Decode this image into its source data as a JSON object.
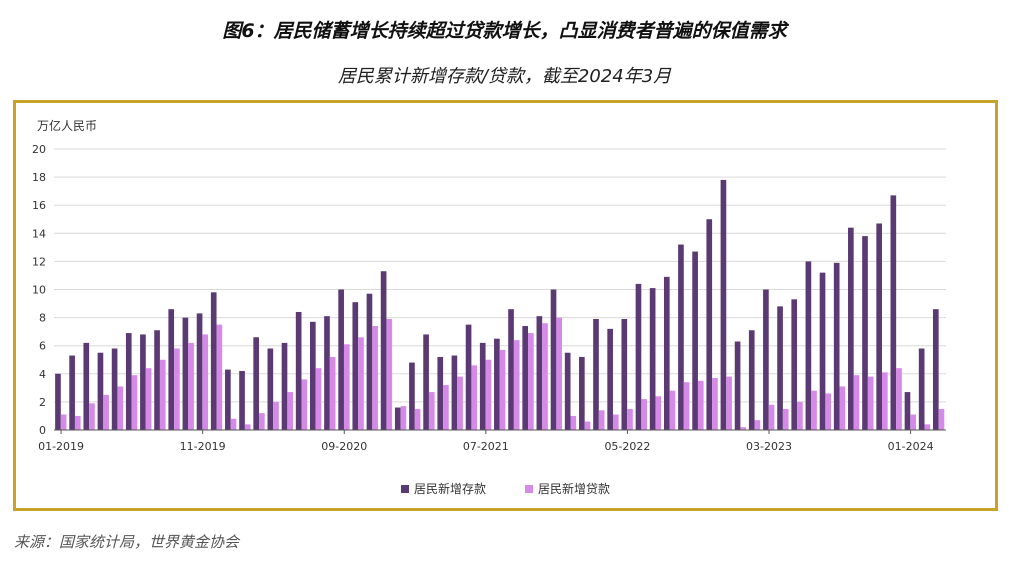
{
  "title": "图6：居民储蓄增长持续超过贷款增长，凸显消费者普遍的保值需求",
  "subtitle": "居民累计新增存款/贷款，截至2024年3月",
  "source": "来源：国家统计局，世界黄金协会",
  "colors": {
    "deposits": "#5B3A73",
    "loans": "#D58AE8",
    "frame": "#C9A227",
    "grid": "#D9D9D9"
  },
  "chart_data": {
    "type": "bar",
    "ylabel": "万亿人民币",
    "ylim": [
      0,
      20
    ],
    "yticks": [
      "0",
      "2",
      "4",
      "6",
      "8",
      "10",
      "12",
      "14",
      "16",
      "18",
      "20"
    ],
    "xtick_labels": [
      {
        "label": "01-2019",
        "index": 0
      },
      {
        "label": "11-2019",
        "index": 10
      },
      {
        "label": "09-2020",
        "index": 20
      },
      {
        "label": "07-2021",
        "index": 30
      },
      {
        "label": "05-2022",
        "index": 40
      },
      {
        "label": "03-2023",
        "index": 50
      },
      {
        "label": "01-2024",
        "index": 60
      }
    ],
    "categories": [
      "01-2019",
      "02-2019",
      "03-2019",
      "04-2019",
      "05-2019",
      "06-2019",
      "07-2019",
      "08-2019",
      "09-2019",
      "10-2019",
      "11-2019",
      "12-2019",
      "01-2020",
      "02-2020",
      "03-2020",
      "04-2020",
      "05-2020",
      "06-2020",
      "07-2020",
      "08-2020",
      "09-2020",
      "10-2020",
      "11-2020",
      "12-2020",
      "01-2021",
      "02-2021",
      "03-2021",
      "04-2021",
      "05-2021",
      "06-2021",
      "07-2021",
      "08-2021",
      "09-2021",
      "10-2021",
      "11-2021",
      "12-2021",
      "01-2022",
      "02-2022",
      "03-2022",
      "04-2022",
      "05-2022",
      "06-2022",
      "07-2022",
      "08-2022",
      "09-2022",
      "10-2022",
      "11-2022",
      "12-2022",
      "01-2023",
      "02-2023",
      "03-2023",
      "04-2023",
      "05-2023",
      "06-2023",
      "07-2023",
      "08-2023",
      "09-2023",
      "10-2023",
      "11-2023",
      "12-2023",
      "01-2024",
      "02-2024",
      "03-2024"
    ],
    "legend_position": "bottom-center",
    "series": [
      {
        "name": "居民新增存款",
        "values": [
          4.0,
          5.3,
          6.2,
          5.5,
          5.8,
          6.9,
          6.8,
          7.1,
          8.6,
          8.0,
          8.3,
          9.8,
          4.3,
          4.2,
          6.6,
          5.8,
          6.2,
          8.4,
          7.7,
          8.1,
          10.0,
          9.1,
          9.7,
          11.3,
          1.6,
          4.8,
          6.8,
          5.2,
          5.3,
          7.5,
          6.2,
          6.5,
          8.6,
          7.4,
          8.1,
          10.0,
          5.5,
          5.2,
          7.9,
          7.2,
          7.9,
          10.4,
          10.1,
          10.9,
          13.2,
          12.7,
          15.0,
          17.8,
          6.3,
          7.1,
          10.0,
          8.8,
          9.3,
          12.0,
          11.2,
          11.9,
          14.4,
          13.8,
          14.7,
          16.7,
          2.7,
          5.8,
          8.6
        ]
      },
      {
        "name": "居民新增贷款",
        "values": [
          1.1,
          1.0,
          1.9,
          2.5,
          3.1,
          3.9,
          4.4,
          5.0,
          5.8,
          6.2,
          6.8,
          7.5,
          0.8,
          0.4,
          1.2,
          2.0,
          2.7,
          3.6,
          4.4,
          5.2,
          6.1,
          6.6,
          7.4,
          7.9,
          1.7,
          1.5,
          2.7,
          3.2,
          3.8,
          4.6,
          5.0,
          5.7,
          6.4,
          6.9,
          7.6,
          8.0,
          1.0,
          0.6,
          1.4,
          1.1,
          1.5,
          2.2,
          2.4,
          2.8,
          3.4,
          3.5,
          3.7,
          3.8,
          0.2,
          0.7,
          1.8,
          1.5,
          2.0,
          2.8,
          2.6,
          3.1,
          3.9,
          3.8,
          4.1,
          4.4,
          1.1,
          0.4,
          1.5
        ]
      }
    ]
  }
}
